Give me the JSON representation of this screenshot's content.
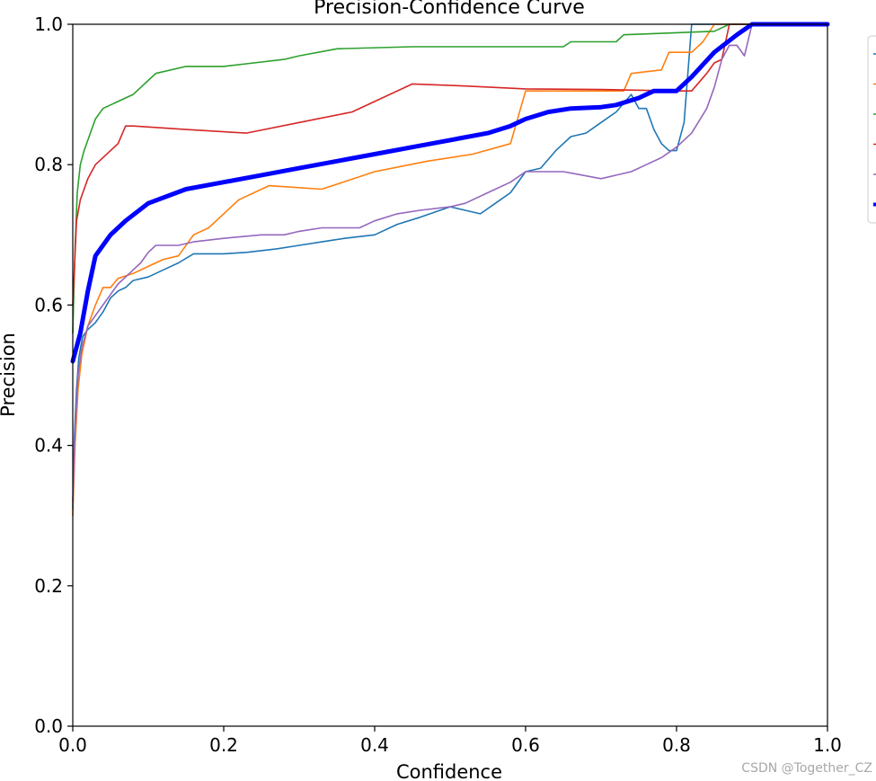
{
  "chart_data": {
    "type": "line",
    "title": "Precision-Confidence Curve",
    "xlabel": "Confidence",
    "ylabel": "Precision",
    "xlim": [
      0,
      1
    ],
    "ylim": [
      0,
      1
    ],
    "grid": false,
    "legend_placement": "outside-right",
    "x_ticks": [
      "0.0",
      "0.2",
      "0.4",
      "0.6",
      "0.8",
      "1.0"
    ],
    "y_ticks": [
      "0.0",
      "0.2",
      "0.4",
      "0.6",
      "0.8",
      "1.0"
    ],
    "series": [
      {
        "color": "#1f77b4",
        "thick": false,
        "points": [
          [
            0.0,
            0.31
          ],
          [
            0.002,
            0.41
          ],
          [
            0.005,
            0.48
          ],
          [
            0.008,
            0.525
          ],
          [
            0.013,
            0.555
          ],
          [
            0.02,
            0.565
          ],
          [
            0.03,
            0.575
          ],
          [
            0.04,
            0.59
          ],
          [
            0.05,
            0.61
          ],
          [
            0.06,
            0.62
          ],
          [
            0.07,
            0.625
          ],
          [
            0.08,
            0.635
          ],
          [
            0.1,
            0.64
          ],
          [
            0.12,
            0.65
          ],
          [
            0.14,
            0.66
          ],
          [
            0.16,
            0.673
          ],
          [
            0.2,
            0.673
          ],
          [
            0.23,
            0.675
          ],
          [
            0.27,
            0.68
          ],
          [
            0.3,
            0.685
          ],
          [
            0.33,
            0.69
          ],
          [
            0.36,
            0.695
          ],
          [
            0.4,
            0.7
          ],
          [
            0.43,
            0.715
          ],
          [
            0.46,
            0.725
          ],
          [
            0.5,
            0.74
          ],
          [
            0.52,
            0.735
          ],
          [
            0.54,
            0.73
          ],
          [
            0.56,
            0.745
          ],
          [
            0.58,
            0.76
          ],
          [
            0.6,
            0.79
          ],
          [
            0.62,
            0.795
          ],
          [
            0.64,
            0.82
          ],
          [
            0.66,
            0.84
          ],
          [
            0.68,
            0.845
          ],
          [
            0.7,
            0.86
          ],
          [
            0.72,
            0.875
          ],
          [
            0.74,
            0.9
          ],
          [
            0.75,
            0.88
          ],
          [
            0.76,
            0.88
          ],
          [
            0.77,
            0.85
          ],
          [
            0.78,
            0.83
          ],
          [
            0.79,
            0.82
          ],
          [
            0.8,
            0.82
          ],
          [
            0.81,
            0.86
          ],
          [
            0.815,
            0.93
          ],
          [
            0.82,
            1.0
          ],
          [
            0.85,
            1.0
          ],
          [
            0.88,
            1.0
          ],
          [
            1.0,
            1.0
          ]
        ]
      },
      {
        "color": "#ff7f0e",
        "thick": false,
        "points": [
          [
            0.0,
            0.3
          ],
          [
            0.003,
            0.4
          ],
          [
            0.007,
            0.48
          ],
          [
            0.012,
            0.53
          ],
          [
            0.02,
            0.57
          ],
          [
            0.03,
            0.6
          ],
          [
            0.04,
            0.625
          ],
          [
            0.05,
            0.625
          ],
          [
            0.06,
            0.638
          ],
          [
            0.08,
            0.645
          ],
          [
            0.1,
            0.655
          ],
          [
            0.12,
            0.665
          ],
          [
            0.14,
            0.67
          ],
          [
            0.16,
            0.7
          ],
          [
            0.18,
            0.71
          ],
          [
            0.2,
            0.73
          ],
          [
            0.22,
            0.75
          ],
          [
            0.26,
            0.77
          ],
          [
            0.33,
            0.765
          ],
          [
            0.4,
            0.79
          ],
          [
            0.47,
            0.805
          ],
          [
            0.53,
            0.815
          ],
          [
            0.58,
            0.83
          ],
          [
            0.6,
            0.905
          ],
          [
            0.65,
            0.905
          ],
          [
            0.7,
            0.905
          ],
          [
            0.73,
            0.905
          ],
          [
            0.74,
            0.93
          ],
          [
            0.78,
            0.935
          ],
          [
            0.79,
            0.96
          ],
          [
            0.82,
            0.96
          ],
          [
            0.835,
            0.975
          ],
          [
            0.85,
            1.0
          ],
          [
            1.0,
            1.0
          ]
        ]
      },
      {
        "color": "#2ca02c",
        "thick": false,
        "points": [
          [
            0.0,
            0.56
          ],
          [
            0.003,
            0.68
          ],
          [
            0.006,
            0.76
          ],
          [
            0.01,
            0.8
          ],
          [
            0.015,
            0.82
          ],
          [
            0.02,
            0.835
          ],
          [
            0.03,
            0.865
          ],
          [
            0.04,
            0.88
          ],
          [
            0.05,
            0.885
          ],
          [
            0.06,
            0.89
          ],
          [
            0.08,
            0.9
          ],
          [
            0.09,
            0.91
          ],
          [
            0.1,
            0.92
          ],
          [
            0.11,
            0.93
          ],
          [
            0.15,
            0.94
          ],
          [
            0.2,
            0.94
          ],
          [
            0.24,
            0.945
          ],
          [
            0.28,
            0.95
          ],
          [
            0.3,
            0.955
          ],
          [
            0.35,
            0.965
          ],
          [
            0.45,
            0.968
          ],
          [
            0.55,
            0.968
          ],
          [
            0.6,
            0.968
          ],
          [
            0.65,
            0.968
          ],
          [
            0.66,
            0.975
          ],
          [
            0.72,
            0.975
          ],
          [
            0.73,
            0.985
          ],
          [
            0.85,
            0.99
          ],
          [
            0.87,
            1.0
          ],
          [
            1.0,
            1.0
          ]
        ]
      },
      {
        "color": "#d62728",
        "thick": false,
        "points": [
          [
            0.0,
            0.6
          ],
          [
            0.005,
            0.72
          ],
          [
            0.01,
            0.75
          ],
          [
            0.015,
            0.765
          ],
          [
            0.02,
            0.78
          ],
          [
            0.03,
            0.8
          ],
          [
            0.04,
            0.81
          ],
          [
            0.05,
            0.82
          ],
          [
            0.06,
            0.83
          ],
          [
            0.07,
            0.855
          ],
          [
            0.08,
            0.855
          ],
          [
            0.15,
            0.85
          ],
          [
            0.23,
            0.845
          ],
          [
            0.3,
            0.86
          ],
          [
            0.37,
            0.875
          ],
          [
            0.45,
            0.915
          ],
          [
            0.52,
            0.912
          ],
          [
            0.6,
            0.908
          ],
          [
            0.7,
            0.907
          ],
          [
            0.8,
            0.905
          ],
          [
            0.82,
            0.905
          ],
          [
            0.84,
            0.93
          ],
          [
            0.85,
            0.945
          ],
          [
            0.86,
            0.95
          ],
          [
            0.87,
            1.0
          ],
          [
            1.0,
            1.0
          ]
        ]
      },
      {
        "color": "#9467bd",
        "thick": false,
        "points": [
          [
            0.0,
            0.32
          ],
          [
            0.003,
            0.42
          ],
          [
            0.007,
            0.5
          ],
          [
            0.012,
            0.54
          ],
          [
            0.02,
            0.57
          ],
          [
            0.03,
            0.585
          ],
          [
            0.04,
            0.6
          ],
          [
            0.05,
            0.615
          ],
          [
            0.06,
            0.63
          ],
          [
            0.07,
            0.64
          ],
          [
            0.08,
            0.65
          ],
          [
            0.09,
            0.66
          ],
          [
            0.1,
            0.675
          ],
          [
            0.11,
            0.685
          ],
          [
            0.14,
            0.685
          ],
          [
            0.16,
            0.69
          ],
          [
            0.2,
            0.695
          ],
          [
            0.25,
            0.7
          ],
          [
            0.28,
            0.7
          ],
          [
            0.3,
            0.705
          ],
          [
            0.33,
            0.71
          ],
          [
            0.38,
            0.71
          ],
          [
            0.4,
            0.72
          ],
          [
            0.43,
            0.73
          ],
          [
            0.46,
            0.735
          ],
          [
            0.5,
            0.74
          ],
          [
            0.52,
            0.745
          ],
          [
            0.55,
            0.76
          ],
          [
            0.58,
            0.775
          ],
          [
            0.6,
            0.79
          ],
          [
            0.65,
            0.79
          ],
          [
            0.7,
            0.78
          ],
          [
            0.72,
            0.785
          ],
          [
            0.74,
            0.79
          ],
          [
            0.76,
            0.8
          ],
          [
            0.78,
            0.81
          ],
          [
            0.8,
            0.825
          ],
          [
            0.82,
            0.845
          ],
          [
            0.84,
            0.88
          ],
          [
            0.85,
            0.91
          ],
          [
            0.86,
            0.95
          ],
          [
            0.87,
            0.97
          ],
          [
            0.88,
            0.97
          ],
          [
            0.89,
            0.955
          ],
          [
            0.9,
            1.0
          ],
          [
            1.0,
            1.0
          ]
        ]
      },
      {
        "color": "#0000ff",
        "thick": true,
        "points": [
          [
            0.0,
            0.52
          ],
          [
            0.01,
            0.56
          ],
          [
            0.02,
            0.62
          ],
          [
            0.03,
            0.67
          ],
          [
            0.05,
            0.7
          ],
          [
            0.07,
            0.72
          ],
          [
            0.1,
            0.745
          ],
          [
            0.15,
            0.765
          ],
          [
            0.2,
            0.775
          ],
          [
            0.25,
            0.785
          ],
          [
            0.3,
            0.795
          ],
          [
            0.35,
            0.805
          ],
          [
            0.4,
            0.815
          ],
          [
            0.45,
            0.825
          ],
          [
            0.5,
            0.835
          ],
          [
            0.55,
            0.845
          ],
          [
            0.58,
            0.855
          ],
          [
            0.6,
            0.865
          ],
          [
            0.63,
            0.875
          ],
          [
            0.66,
            0.88
          ],
          [
            0.7,
            0.882
          ],
          [
            0.72,
            0.885
          ],
          [
            0.75,
            0.895
          ],
          [
            0.77,
            0.905
          ],
          [
            0.8,
            0.905
          ],
          [
            0.82,
            0.925
          ],
          [
            0.85,
            0.96
          ],
          [
            0.88,
            0.985
          ],
          [
            0.9,
            1.0
          ],
          [
            1.0,
            1.0
          ]
        ]
      }
    ]
  },
  "watermark": "CSDN @Together_CZ"
}
